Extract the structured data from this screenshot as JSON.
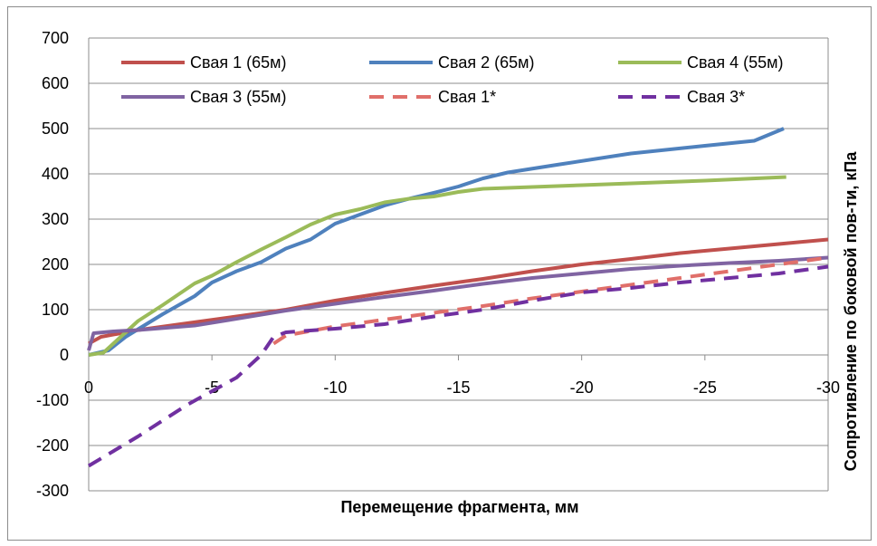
{
  "chart_data": {
    "type": "line",
    "xlabel": "Перемещение фрагмента, мм",
    "ylabel": "Сопротивление по боковой пов-ти, кПа",
    "xlim": [
      0,
      -30
    ],
    "ylim": [
      -300,
      700
    ],
    "x_ticks": [
      0,
      -5,
      -10,
      -15,
      -20,
      -25,
      -30
    ],
    "x_tick_labels": [
      "0",
      "-5",
      "-10",
      "-15",
      "-20",
      "-25",
      "-30"
    ],
    "y_ticks": [
      -300,
      -200,
      -100,
      0,
      100,
      200,
      300,
      400,
      500,
      600,
      700
    ],
    "y_tick_labels": [
      "-300",
      "-200",
      "-100",
      "0",
      "100",
      "200",
      "300",
      "400",
      "500",
      "600",
      "700"
    ],
    "grid": "horizontal",
    "legend_position": "top",
    "series": [
      {
        "name": "Свая 1 (65м)",
        "color": "#c0504d",
        "dash": "solid",
        "points": [
          [
            0,
            25
          ],
          [
            -0.5,
            40
          ],
          [
            -2,
            55
          ],
          [
            -4,
            70
          ],
          [
            -6,
            85
          ],
          [
            -8,
            100
          ],
          [
            -10,
            120
          ],
          [
            -12,
            137
          ],
          [
            -14,
            153
          ],
          [
            -16,
            168
          ],
          [
            -18,
            185
          ],
          [
            -20,
            200
          ],
          [
            -22,
            212
          ],
          [
            -24,
            225
          ],
          [
            -26,
            235
          ],
          [
            -28,
            245
          ],
          [
            -30,
            255
          ]
        ]
      },
      {
        "name": "Свая 2 (65м)",
        "color": "#4f81bd",
        "dash": "solid",
        "points": [
          [
            0,
            0
          ],
          [
            -0.8,
            10
          ],
          [
            -1.5,
            40
          ],
          [
            -3,
            90
          ],
          [
            -4.3,
            130
          ],
          [
            -5,
            160
          ],
          [
            -6,
            185
          ],
          [
            -7,
            205
          ],
          [
            -8,
            235
          ],
          [
            -9,
            255
          ],
          [
            -10,
            290
          ],
          [
            -11,
            310
          ],
          [
            -12,
            330
          ],
          [
            -13,
            345
          ],
          [
            -14,
            358
          ],
          [
            -15,
            372
          ],
          [
            -16,
            390
          ],
          [
            -17,
            403
          ],
          [
            -19,
            420
          ],
          [
            -22,
            445
          ],
          [
            -25,
            462
          ],
          [
            -27,
            473
          ],
          [
            -28.2,
            500
          ]
        ]
      },
      {
        "name": "Свая 4 (55м)",
        "color": "#9bbb59",
        "dash": "solid",
        "points": [
          [
            0,
            0
          ],
          [
            -0.6,
            5
          ],
          [
            -1,
            25
          ],
          [
            -2,
            75
          ],
          [
            -3,
            110
          ],
          [
            -4.3,
            158
          ],
          [
            -5,
            175
          ],
          [
            -6,
            205
          ],
          [
            -7,
            233
          ],
          [
            -8,
            260
          ],
          [
            -9,
            288
          ],
          [
            -10,
            310
          ],
          [
            -11,
            322
          ],
          [
            -12,
            337
          ],
          [
            -13,
            345
          ],
          [
            -14,
            350
          ],
          [
            -15,
            360
          ],
          [
            -16,
            367
          ],
          [
            -20,
            375
          ],
          [
            -25,
            385
          ],
          [
            -28.3,
            393
          ]
        ]
      },
      {
        "name": "Свая 3 (55м)",
        "color": "#8064a2",
        "dash": "solid",
        "points": [
          [
            0,
            10
          ],
          [
            -0.2,
            48
          ],
          [
            -1,
            52
          ],
          [
            -2,
            55
          ],
          [
            -4.3,
            65
          ],
          [
            -6,
            80
          ],
          [
            -8,
            98
          ],
          [
            -10,
            113
          ],
          [
            -12,
            128
          ],
          [
            -14,
            142
          ],
          [
            -16,
            157
          ],
          [
            -18,
            170
          ],
          [
            -20,
            180
          ],
          [
            -22,
            190
          ],
          [
            -24,
            197
          ],
          [
            -26,
            203
          ],
          [
            -28,
            208
          ],
          [
            -30,
            215
          ]
        ]
      },
      {
        "name": "Свая 1*",
        "color": "#e06f6a",
        "dash": "dashed",
        "points": [
          [
            -7.5,
            25
          ],
          [
            -8,
            43
          ],
          [
            -10,
            63
          ],
          [
            -12,
            78
          ],
          [
            -14,
            93
          ],
          [
            -16,
            108
          ],
          [
            -18,
            125
          ],
          [
            -20,
            140
          ],
          [
            -22,
            155
          ],
          [
            -24,
            170
          ],
          [
            -26,
            185
          ],
          [
            -28,
            200
          ],
          [
            -30,
            215
          ]
        ]
      },
      {
        "name": "Свая 3*",
        "color": "#7030a0",
        "dash": "dashed",
        "points": [
          [
            0,
            -245
          ],
          [
            -2,
            -180
          ],
          [
            -4,
            -110
          ],
          [
            -6,
            -50
          ],
          [
            -7,
            0
          ],
          [
            -7.5,
            40
          ],
          [
            -8,
            50
          ],
          [
            -10,
            58
          ],
          [
            -12,
            68
          ],
          [
            -14,
            85
          ],
          [
            -16,
            100
          ],
          [
            -18,
            120
          ],
          [
            -20,
            138
          ],
          [
            -22,
            148
          ],
          [
            -24,
            160
          ],
          [
            -26,
            170
          ],
          [
            -28,
            180
          ],
          [
            -30,
            195
          ]
        ]
      }
    ]
  }
}
